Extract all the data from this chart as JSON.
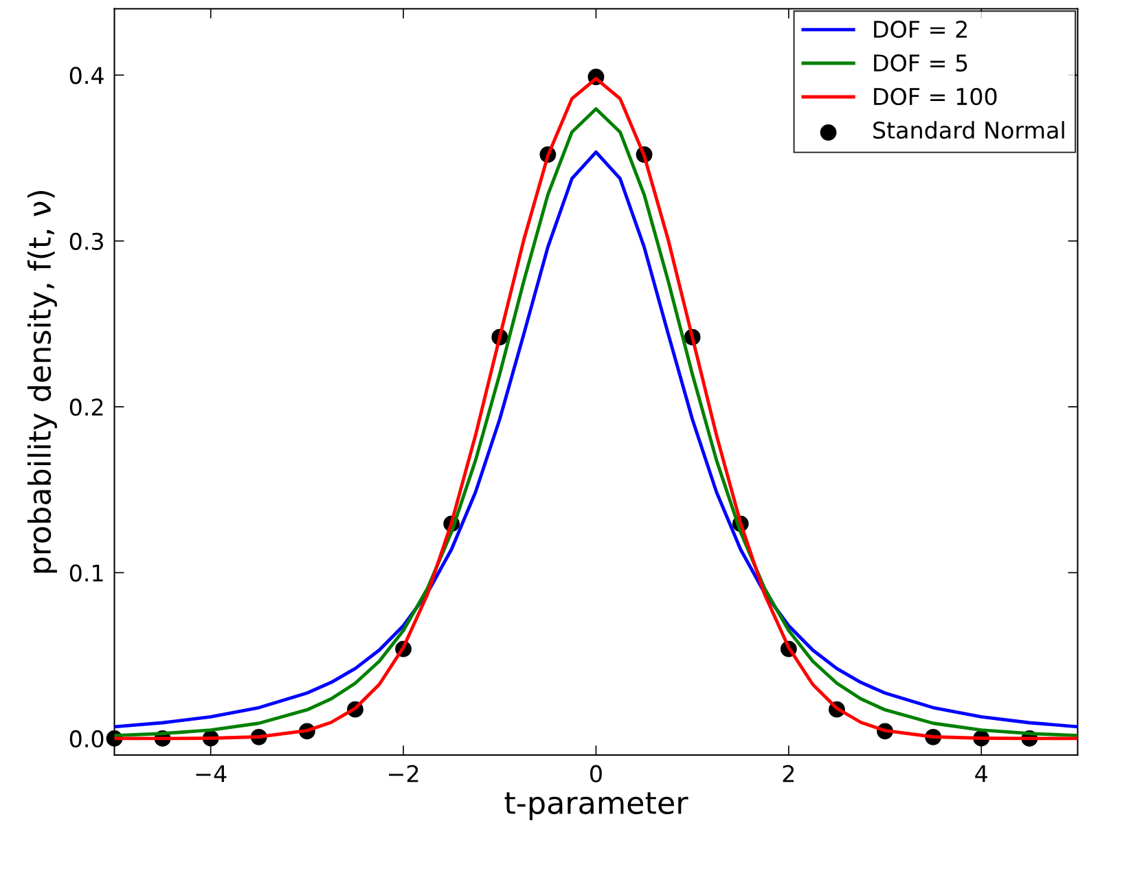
{
  "chart_data": {
    "type": "line",
    "xlabel": "t-parameter",
    "ylabel": "probability density, f(t, ν)",
    "xlim": [
      -5,
      5
    ],
    "ylim": [
      -0.01,
      0.44
    ],
    "xticks": [
      {
        "value": -4,
        "label": "−4"
      },
      {
        "value": -2,
        "label": "−2"
      },
      0,
      2,
      4
    ],
    "yticks": [
      {
        "value": 0,
        "label": "0.0"
      },
      0.1,
      0.2,
      0.3,
      0.4
    ],
    "grid": false,
    "legend": "top right",
    "series": [
      {
        "name": "DOF = 2",
        "color": "#0000ff",
        "x": [
          -5,
          -4.5,
          -4,
          -3.5,
          -3,
          -2.75,
          -2.5,
          -2.25,
          -2,
          -1.75,
          -1.5,
          -1.25,
          -1,
          -0.75,
          -0.5,
          -0.25,
          0,
          0.25,
          0.5,
          0.75,
          1,
          1.25,
          1.5,
          1.75,
          2,
          2.25,
          2.5,
          2.75,
          3,
          3.5,
          4,
          4.5,
          5
        ],
        "values": [
          0.0071,
          0.0095,
          0.0131,
          0.0186,
          0.0274,
          0.0338,
          0.0422,
          0.0533,
          0.068,
          0.0878,
          0.1141,
          0.1487,
          0.1925,
          0.2438,
          0.2963,
          0.3376,
          0.3536,
          0.3376,
          0.2963,
          0.2438,
          0.1925,
          0.1487,
          0.1141,
          0.0878,
          0.068,
          0.0533,
          0.0422,
          0.0338,
          0.0274,
          0.0186,
          0.0131,
          0.0095,
          0.0071
        ]
      },
      {
        "name": "DOF = 5",
        "color": "#008000",
        "x": [
          -5,
          -4.5,
          -4,
          -3.5,
          -3,
          -2.75,
          -2.5,
          -2.25,
          -2,
          -1.75,
          -1.5,
          -1.25,
          -1,
          -0.75,
          -0.5,
          -0.25,
          0,
          0.25,
          0.5,
          0.75,
          1,
          1.25,
          1.5,
          1.75,
          2,
          2.25,
          2.5,
          2.75,
          3,
          3.5,
          4,
          4.5,
          5
        ],
        "values": [
          0.0018,
          0.003,
          0.0051,
          0.0092,
          0.0173,
          0.0239,
          0.0333,
          0.0466,
          0.0651,
          0.0905,
          0.1245,
          0.1679,
          0.2197,
          0.2757,
          0.3279,
          0.3657,
          0.3796,
          0.3657,
          0.3279,
          0.2757,
          0.2197,
          0.1679,
          0.1245,
          0.0905,
          0.0651,
          0.0466,
          0.0333,
          0.0239,
          0.0173,
          0.0092,
          0.0051,
          0.003,
          0.0018
        ]
      },
      {
        "name": "DOF = 100",
        "color": "#ff0000",
        "x": [
          -5,
          -4.5,
          -4,
          -3.5,
          -3,
          -2.75,
          -2.5,
          -2.25,
          -2,
          -1.75,
          -1.5,
          -1.25,
          -1,
          -0.75,
          -0.5,
          -0.25,
          0,
          0.25,
          0.5,
          0.75,
          1,
          1.25,
          1.5,
          1.75,
          2,
          2.25,
          2.5,
          2.75,
          3,
          3.5,
          4,
          4.5,
          5
        ],
        "values": [
          0.0,
          0.0,
          0.0002,
          0.001,
          0.0048,
          0.0097,
          0.0182,
          0.0326,
          0.0549,
          0.087,
          0.1301,
          0.183,
          0.242,
          0.3006,
          0.3514,
          0.3858,
          0.3979,
          0.3858,
          0.3514,
          0.3006,
          0.242,
          0.183,
          0.1301,
          0.087,
          0.0549,
          0.0326,
          0.0182,
          0.0097,
          0.0048,
          0.001,
          0.0002,
          0.0,
          0.0
        ]
      },
      {
        "name": "Standard Normal",
        "type": "scatter",
        "color": "#000000",
        "marker": "circle",
        "x": [
          -5,
          -4.5,
          -4,
          -3.5,
          -3,
          -2.5,
          -2,
          -1.5,
          -1,
          -0.5,
          0,
          0.5,
          1,
          1.5,
          2,
          2.5,
          3,
          3.5,
          4,
          4.5
        ],
        "values": [
          0.0,
          0.0,
          0.0001,
          0.0009,
          0.0044,
          0.0175,
          0.054,
          0.1295,
          0.242,
          0.3521,
          0.3989,
          0.3521,
          0.242,
          0.1295,
          0.054,
          0.0175,
          0.0044,
          0.0009,
          0.0001,
          0.0
        ]
      }
    ]
  }
}
